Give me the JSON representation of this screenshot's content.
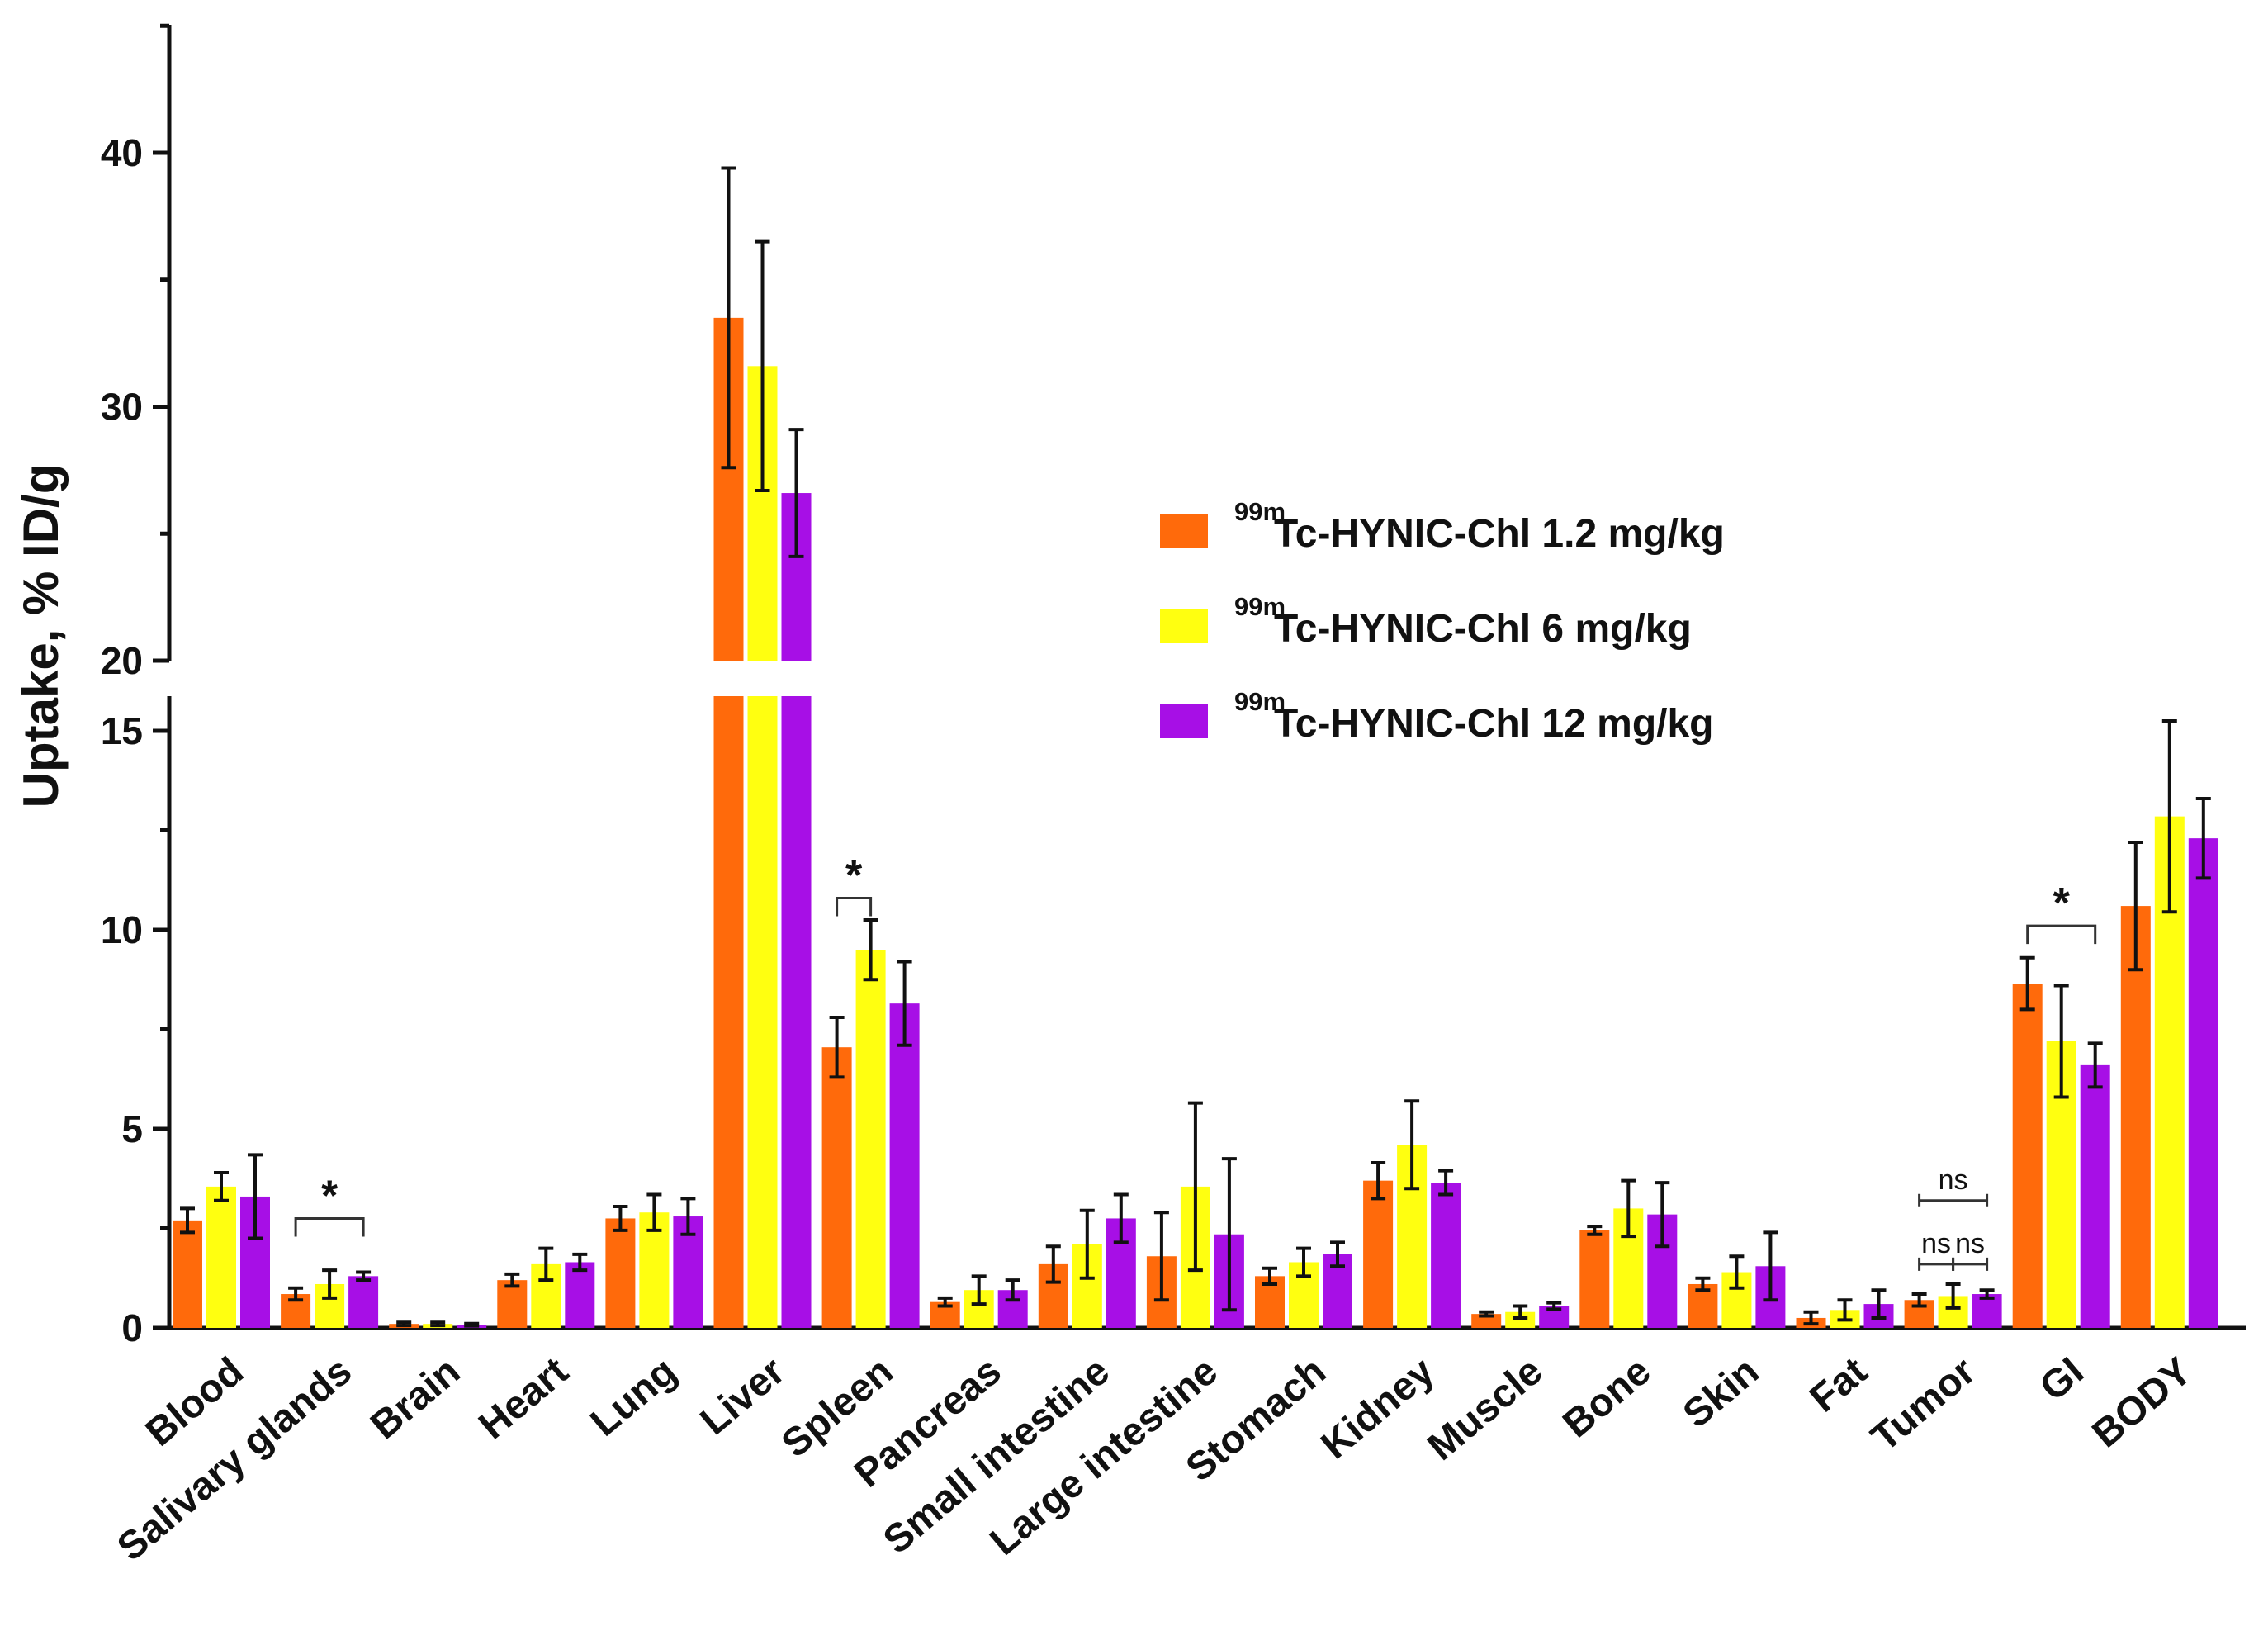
{
  "chart_data": {
    "type": "bar",
    "ylabel": "Uptake, % ID/g",
    "y_axis_break": [
      16,
      20
    ],
    "ylim_lower": [
      0,
      16
    ],
    "ylim_upper": [
      20,
      45
    ],
    "yticks_lower": [
      "0",
      "5",
      "10",
      "15"
    ],
    "yticks_upper": [
      "20",
      "30",
      "40"
    ],
    "categories": [
      "Blood",
      "Salivary glands",
      "Brain",
      "Heart",
      "Lung",
      "Liver",
      "Spleen",
      "Pancreas",
      "Small intestine",
      "Large intestine",
      "Stomach",
      "Kidney",
      "Muscle",
      "Bone",
      "Skin",
      "Fat",
      "Tumor",
      "GI",
      "BODY"
    ],
    "series": [
      {
        "name": "99mTc-HYNIC-Chl 1.2 mg/kg",
        "iso": "99m",
        "label": "Tc-HYNIC-Chl 1.2 mg/kg",
        "color": "#FF6A0B",
        "values": [
          2.7,
          0.85,
          0.1,
          1.2,
          2.75,
          33.5,
          7.05,
          0.65,
          1.6,
          1.8,
          1.3,
          3.7,
          0.35,
          2.45,
          1.1,
          0.25,
          0.7,
          8.65,
          10.6
        ],
        "errors": [
          0.3,
          0.15,
          0.04,
          0.15,
          0.3,
          5.9,
          0.75,
          0.1,
          0.45,
          1.1,
          0.2,
          0.45,
          0.05,
          0.1,
          0.15,
          0.15,
          0.15,
          0.65,
          1.6
        ]
      },
      {
        "name": "99mTc-HYNIC-Chl 6 mg/kg",
        "iso": "99m",
        "label": "Tc-HYNIC-Chl 6 mg/kg",
        "color": "#FFFF10",
        "values": [
          3.55,
          1.1,
          0.1,
          1.6,
          2.9,
          31.6,
          9.5,
          0.95,
          2.1,
          3.55,
          1.65,
          4.6,
          0.4,
          3.0,
          1.4,
          0.45,
          0.8,
          7.2,
          12.85
        ],
        "errors": [
          0.35,
          0.35,
          0.04,
          0.4,
          0.45,
          4.9,
          0.75,
          0.35,
          0.85,
          2.1,
          0.35,
          1.1,
          0.15,
          0.7,
          0.4,
          0.25,
          0.3,
          1.4,
          2.4
        ]
      },
      {
        "name": "99mTc-HYNIC-Chl 12 mg/kg",
        "iso": "99m",
        "label": "Tc-HYNIC-Chl 12 mg/kg",
        "color": "#A70FE6",
        "values": [
          3.3,
          1.3,
          0.08,
          1.65,
          2.8,
          26.6,
          8.15,
          0.95,
          2.75,
          2.35,
          1.85,
          3.65,
          0.55,
          2.85,
          1.55,
          0.6,
          0.85,
          6.6,
          12.3
        ],
        "errors": [
          1.05,
          0.1,
          0.03,
          0.2,
          0.45,
          2.5,
          1.05,
          0.25,
          0.6,
          1.9,
          0.3,
          0.3,
          0.08,
          0.8,
          0.85,
          0.35,
          0.1,
          0.55,
          1.0
        ]
      }
    ],
    "annotations": [
      {
        "category": "Salivary glands",
        "from_series": 0,
        "to_series": 2,
        "label": "*",
        "y": 2.75
      },
      {
        "category": "Spleen",
        "from_series": 0,
        "to_series": 1,
        "label": "*",
        "y": 10.8
      },
      {
        "category": "GI",
        "from_series": 0,
        "to_series": 2,
        "label": "*",
        "y": 10.1
      },
      {
        "category": "Tumor",
        "from_series": 0,
        "to_series": 1,
        "label": "ns",
        "y": 1.6
      },
      {
        "category": "Tumor",
        "from_series": 1,
        "to_series": 2,
        "label": "ns",
        "y": 1.6
      },
      {
        "category": "Tumor",
        "from_series": 0,
        "to_series": 2,
        "label": "ns",
        "y": 3.2
      }
    ],
    "legend_position": "right-middle"
  }
}
